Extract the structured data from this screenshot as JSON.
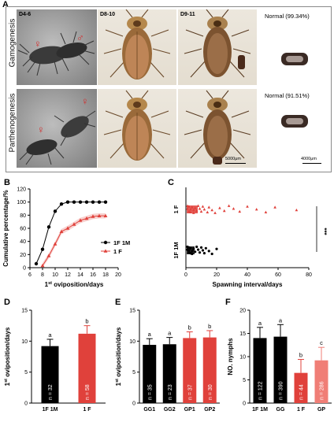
{
  "panel_labels": {
    "a": "A",
    "b": "B",
    "c": "C",
    "d": "D",
    "e": "E",
    "f": "F"
  },
  "panel_a": {
    "row1_label": "Gamogenesis",
    "row2_label": "Parthenogenesis",
    "col_labels": [
      "D4-6",
      "D8-10",
      "D9-11"
    ],
    "normal_row1": "Normal (99.34%)",
    "normal_row2": "Normal (91.51%)",
    "scale_bar_1": "5000μm",
    "scale_bar_2": "4000μm",
    "female_symbol": "♀",
    "male_symbol": "♂"
  },
  "chart_data": [
    {
      "id": "B",
      "type": "line",
      "ylabel": "Cumulative percentage/%",
      "xlabel": "1st oviposition/days",
      "xlim": [
        6,
        20
      ],
      "ylim": [
        0,
        120
      ],
      "xticks": [
        6,
        8,
        10,
        12,
        14,
        16,
        18,
        20
      ],
      "yticks": [
        0,
        20,
        40,
        60,
        80,
        100,
        120
      ],
      "series": [
        {
          "name": "1F 1M",
          "color": "#000000",
          "marker": "circle",
          "x": [
            7,
            8,
            9,
            10,
            11,
            12,
            13,
            14,
            15,
            16,
            17,
            18
          ],
          "y": [
            6,
            28,
            62,
            86,
            97,
            100,
            100,
            100,
            100,
            100,
            100,
            100
          ]
        },
        {
          "name": "1 F",
          "color": "#e0413b",
          "marker": "triangle",
          "x": [
            8,
            9,
            10,
            11,
            12,
            13,
            14,
            15,
            16,
            17,
            18
          ],
          "y": [
            3,
            18,
            36,
            55,
            60,
            66,
            72,
            75,
            78,
            79,
            79
          ]
        }
      ],
      "legend": "bottom-right"
    },
    {
      "id": "C",
      "type": "scatter",
      "xlabel": "Spawning interval/days",
      "xlim": [
        0,
        80
      ],
      "xticks": [
        0,
        20,
        40,
        60,
        80
      ],
      "categories": [
        "1 F",
        "1F 1M"
      ],
      "series": [
        {
          "name": "1 F",
          "color": "#e0413b",
          "x": [
            1,
            1,
            2,
            2,
            3,
            3,
            4,
            5,
            5,
            6,
            7,
            8,
            9,
            10,
            11,
            12,
            14,
            15,
            17,
            19,
            22,
            25,
            28,
            31,
            35,
            40,
            46,
            52,
            58,
            72
          ]
        },
        {
          "name": "1F 1M",
          "color": "#000000",
          "x": [
            1,
            1,
            2,
            2,
            2,
            3,
            3,
            4,
            4,
            5,
            6,
            7,
            8,
            9,
            10,
            11,
            12,
            13,
            15,
            17,
            20
          ]
        }
      ],
      "significance": "***"
    },
    {
      "id": "D",
      "type": "bar",
      "ylabel": "1st oviposition/days",
      "ylim": [
        0,
        15
      ],
      "yticks": [
        0,
        5,
        10,
        15
      ],
      "categories": [
        "1F 1M",
        "1 F"
      ],
      "values": [
        9.2,
        11.2
      ],
      "errors": [
        1.1,
        1.3
      ],
      "n_labels": [
        "n = 32",
        "n = 58"
      ],
      "letters": [
        "a",
        "b"
      ],
      "colors": [
        "#000000",
        "#e0413b"
      ]
    },
    {
      "id": "E",
      "type": "bar",
      "ylabel": "1st oviposition/days",
      "ylim": [
        0,
        15
      ],
      "yticks": [
        0,
        5,
        10,
        15
      ],
      "categories": [
        "GG1",
        "GG2",
        "GP1",
        "GP2"
      ],
      "values": [
        9.4,
        9.5,
        10.5,
        10.6
      ],
      "errors": [
        1.0,
        1.1,
        1.0,
        1.1
      ],
      "n_labels": [
        "n = 35",
        "n = 23",
        "n = 37",
        "n = 30"
      ],
      "letters": [
        "a",
        "a",
        "b",
        "b"
      ],
      "colors": [
        "#000000",
        "#000000",
        "#e0413b",
        "#e0413b"
      ]
    },
    {
      "id": "F",
      "type": "bar",
      "ylabel": "NO. nymphs",
      "ylim": [
        0,
        20
      ],
      "yticks": [
        0,
        5,
        10,
        15,
        20
      ],
      "categories": [
        "1F 1M",
        "GG",
        "1 F",
        "GP"
      ],
      "values": [
        14.0,
        14.3,
        6.5,
        9.2
      ],
      "errors": [
        2.3,
        2.6,
        2.9,
        2.8
      ],
      "n_labels": [
        "n = 122",
        "n = 390",
        "n = 44",
        "n = 286"
      ],
      "letters": [
        "a",
        "a",
        "b",
        "c"
      ],
      "colors": [
        "#000000",
        "#000000",
        "#e0413b",
        "#f07e76"
      ]
    }
  ]
}
